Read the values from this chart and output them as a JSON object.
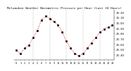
{
  "title": "Milwaukee Weather Barometric Pressure per Hour (Last 24 Hours)",
  "hours": [
    0,
    1,
    2,
    3,
    4,
    5,
    6,
    7,
    8,
    9,
    10,
    11,
    12,
    13,
    14,
    15,
    16,
    17,
    18,
    19,
    20,
    21,
    22,
    23
  ],
  "pressure": [
    29.48,
    29.42,
    29.52,
    29.58,
    29.72,
    29.85,
    30.05,
    30.12,
    30.08,
    30.02,
    29.95,
    29.82,
    29.65,
    29.52,
    29.42,
    29.38,
    29.42,
    29.52,
    29.62,
    29.72,
    29.82,
    29.88,
    29.92,
    29.95
  ],
  "line_color": "#ff0000",
  "marker_color": "#000000",
  "grid_color": "#888888",
  "bg_color": "#ffffff",
  "ymin": 29.3,
  "ymax": 30.25,
  "yticks": [
    29.4,
    29.5,
    29.6,
    29.7,
    29.8,
    29.9,
    30.0,
    30.1,
    30.2
  ],
  "ylabel_fontsize": 2.8,
  "xlabel_fontsize": 2.5,
  "title_fontsize": 3.2,
  "vgrid_positions": [
    4,
    8,
    12,
    16,
    20
  ]
}
